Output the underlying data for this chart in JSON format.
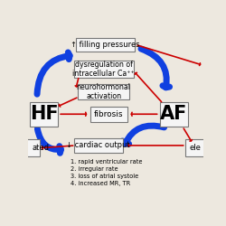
{
  "bg_color": "#ede8df",
  "hf_label": "HF",
  "af_label": "AF",
  "fibrosis_text": "fibrosis",
  "filling_pressures_text": "↑ filling pressures",
  "dysregulation_text": "dysregulation of\nintracellular Ca⁺⁺",
  "neurohormonal_text": "neurohormonal\nactivation",
  "cardiac_output_text": "↓ cardiac output",
  "list_text": "1. rapid ventricular rate\n2. irregular rate\n3. loss of atrial systole\n4. increased MR, TR",
  "ele_text": "ele",
  "ated_text": "ated",
  "blue_color": "#1040e0",
  "red_color": "#cc0000",
  "box_facecolor": "#f5f5f5",
  "box_edgecolor": "#777777",
  "text_fontsize": 6.0,
  "hf_af_fontsize": 15,
  "fibrosis_fontsize": 6.5
}
